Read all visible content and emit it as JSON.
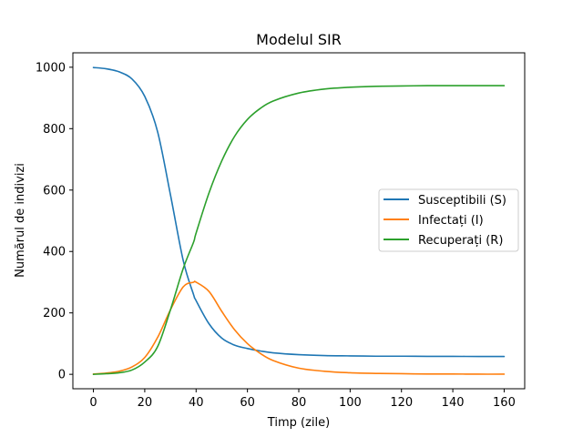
{
  "chart_data": {
    "type": "line",
    "title": "Modelul SIR",
    "xlabel": "Timp (zile)",
    "ylabel": "Numărul de indivizi",
    "xlim": [
      -8,
      168
    ],
    "ylim": [
      -47,
      1047
    ],
    "xticks": [
      0,
      20,
      40,
      60,
      80,
      100,
      120,
      140,
      160
    ],
    "yticks": [
      0,
      200,
      400,
      600,
      800,
      1000
    ],
    "grid": false,
    "legend_position": "center-right",
    "x": [
      0,
      5,
      10,
      15,
      20,
      25,
      30,
      35,
      39,
      40,
      45,
      50,
      55,
      60,
      65,
      70,
      80,
      90,
      100,
      110,
      120,
      130,
      140,
      150,
      160
    ],
    "series": [
      {
        "name": "Susceptibili (S)",
        "color": "#1f77b4",
        "values": [
          999,
          995,
          985,
          962,
          905,
          790,
          585,
          370,
          260,
          240,
          165,
          118,
          95,
          84,
          76,
          70,
          64,
          61,
          60,
          59,
          59,
          58.5,
          58.5,
          58,
          58
        ]
      },
      {
        "name": "Infectați (I)",
        "color": "#ff7f0e",
        "values": [
          1,
          4,
          10,
          24,
          55,
          120,
          210,
          285,
          300,
          300,
          270,
          205,
          145,
          100,
          68,
          45,
          20,
          10,
          5,
          3,
          2,
          1,
          1,
          0.5,
          0.5
        ]
      },
      {
        "name": "Recuperați (R)",
        "color": "#2ca02c",
        "values": [
          0,
          2,
          5,
          14,
          40,
          90,
          210,
          345,
          430,
          460,
          590,
          695,
          775,
          830,
          866,
          890,
          916,
          929,
          935,
          938,
          939,
          940,
          940,
          940,
          940
        ]
      }
    ]
  }
}
